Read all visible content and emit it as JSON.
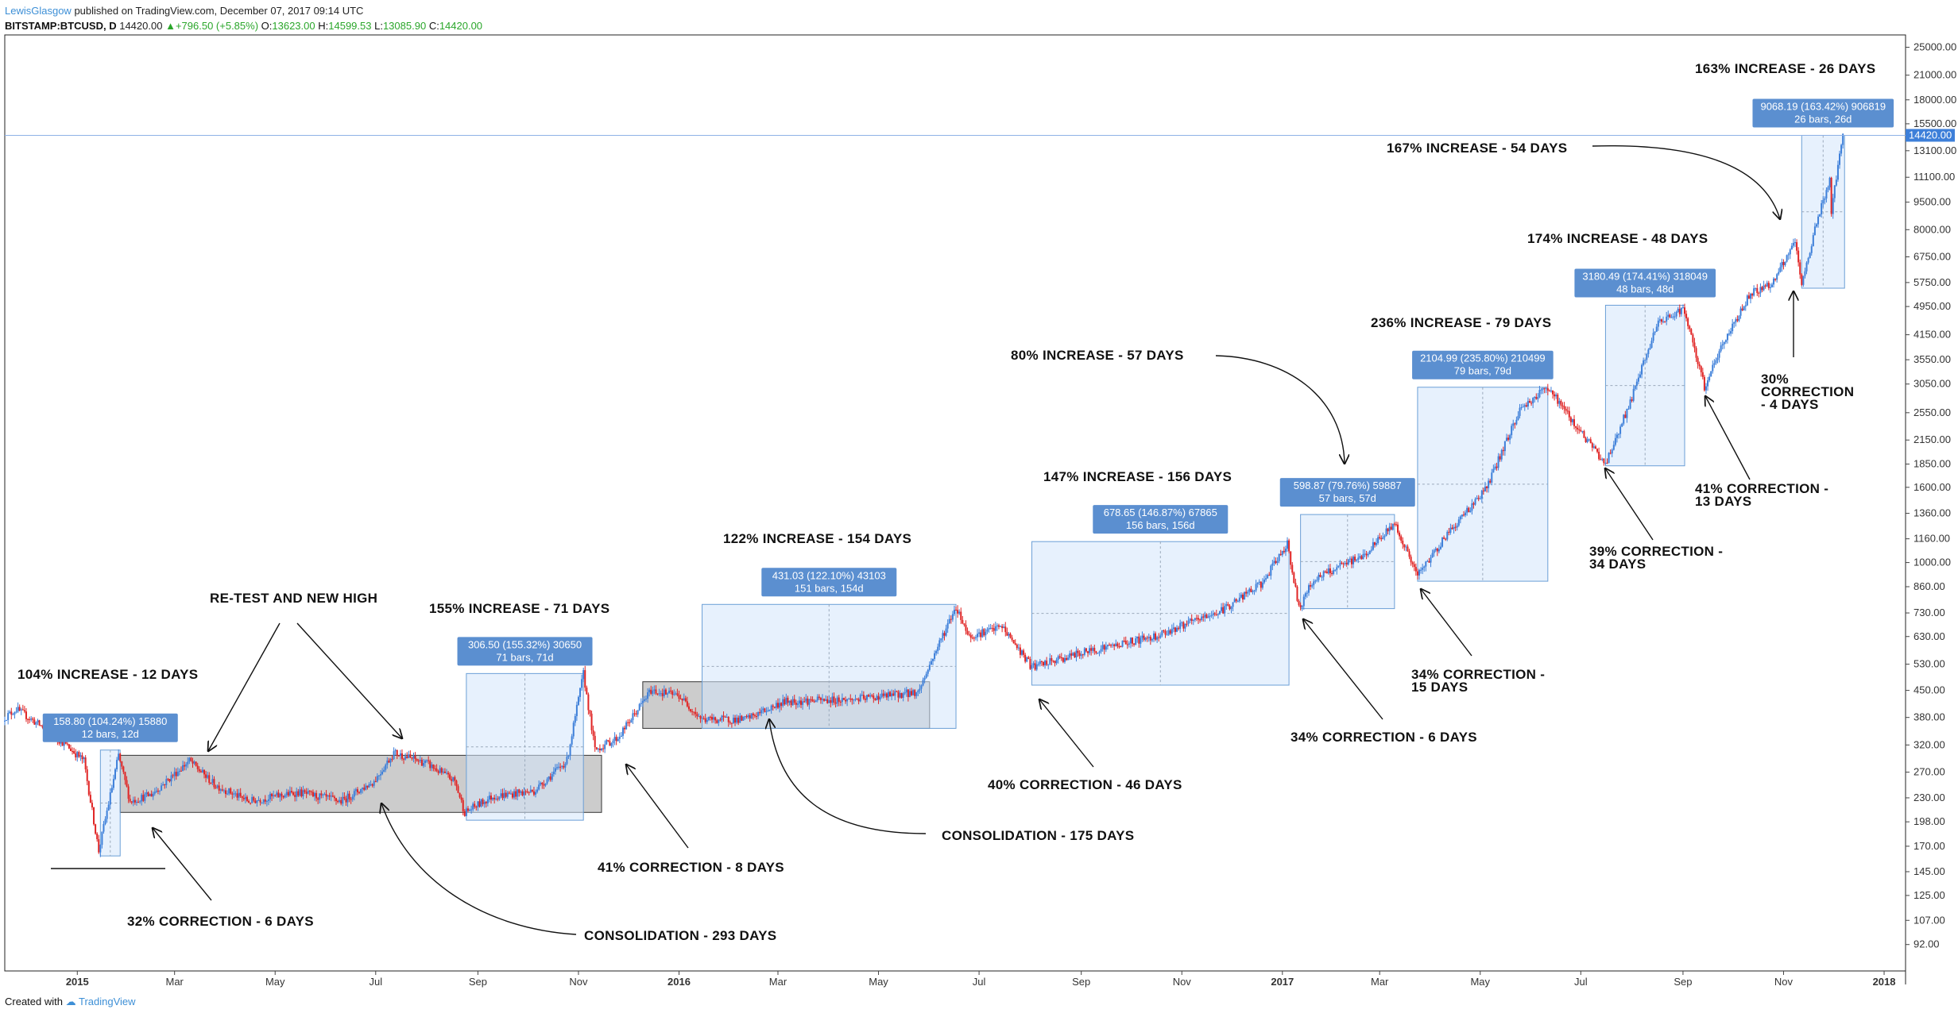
{
  "header": {
    "author": "LewisGlasgow",
    "published": "published on TradingView.com, December 07, 2017 09:14 UTC",
    "symbol": "BITSTAMP:BTCUSD, D",
    "last": "14420.00",
    "change": "+796.50 (+5.85%)",
    "o_label": "O:",
    "o": "13623.00",
    "h_label": "H:",
    "h": "14599.53",
    "l_label": "L:",
    "l": "13085.90",
    "c_label": "C:",
    "c": "14420.00"
  },
  "footer": {
    "created_with": "Created with",
    "brand": "TradingView"
  },
  "colors": {
    "up": "#3d7fd9",
    "down": "#e02424",
    "measure_fill": "#d3e6fb",
    "label_bg": "#5b8fd0"
  },
  "chart_data": {
    "type": "candlestick",
    "title": "",
    "y_scale": "log",
    "ylim": [
      78,
      27000
    ],
    "y_ticks": [
      92,
      107,
      125,
      145,
      170,
      198,
      230,
      270,
      320,
      380,
      450,
      530,
      630,
      730,
      860,
      1000,
      1160,
      1360,
      1600,
      1850,
      2150,
      2550,
      3050,
      3550,
      4150,
      4950,
      5750,
      6750,
      8000,
      9500,
      11100,
      13100,
      15500,
      18000,
      21000,
      25000
    ],
    "y_tick_labels": [
      "92.00",
      "107.00",
      "125.00",
      "145.00",
      "170.00",
      "198.00",
      "230.00",
      "270.00",
      "320.00",
      "380.00",
      "450.00",
      "530.00",
      "630.00",
      "730.00",
      "860.00",
      "1000.00",
      "1160.00",
      "1360.00",
      "1600.00",
      "1850.00",
      "2150.00",
      "2550.00",
      "3050.00",
      "3550.00",
      "4150.00",
      "4950.00",
      "5750.00",
      "6750.00",
      "8000.00",
      "9500.00",
      "11100.00",
      "13100.00",
      "15500.00",
      "18000.00",
      "21000.00",
      "25000.00"
    ],
    "last_price_label": "14420.00",
    "x_range": [
      "2014-11-18",
      "2018-01-14"
    ],
    "x_ticks": [
      {
        "date": "2015-01-01",
        "label": "2015",
        "bold": true
      },
      {
        "date": "2015-03-01",
        "label": "Mar"
      },
      {
        "date": "2015-05-01",
        "label": "May"
      },
      {
        "date": "2015-07-01",
        "label": "Jul"
      },
      {
        "date": "2015-09-01",
        "label": "Sep"
      },
      {
        "date": "2015-11-01",
        "label": "Nov"
      },
      {
        "date": "2016-01-01",
        "label": "2016",
        "bold": true
      },
      {
        "date": "2016-03-01",
        "label": "Mar"
      },
      {
        "date": "2016-05-01",
        "label": "May"
      },
      {
        "date": "2016-07-01",
        "label": "Jul"
      },
      {
        "date": "2016-09-01",
        "label": "Sep"
      },
      {
        "date": "2016-11-01",
        "label": "Nov"
      },
      {
        "date": "2017-01-01",
        "label": "2017",
        "bold": true
      },
      {
        "date": "2017-03-01",
        "label": "Mar"
      },
      {
        "date": "2017-05-01",
        "label": "May"
      },
      {
        "date": "2017-07-01",
        "label": "Jul"
      },
      {
        "date": "2017-09-01",
        "label": "Sep"
      },
      {
        "date": "2017-11-01",
        "label": "Nov"
      },
      {
        "date": "2018-01-01",
        "label": "2018",
        "bold": true
      }
    ],
    "price_path": [
      [
        "2014-11-18",
        380
      ],
      [
        "2014-11-25",
        400
      ],
      [
        "2014-12-10",
        360
      ],
      [
        "2014-12-25",
        320
      ],
      [
        "2015-01-05",
        290
      ],
      [
        "2015-01-14",
        165
      ],
      [
        "2015-01-26",
        300
      ],
      [
        "2015-02-02",
        225
      ],
      [
        "2015-02-15",
        235
      ],
      [
        "2015-03-10",
        290
      ],
      [
        "2015-03-25",
        250
      ],
      [
        "2015-04-15",
        225
      ],
      [
        "2015-05-15",
        238
      ],
      [
        "2015-06-10",
        225
      ],
      [
        "2015-06-30",
        255
      ],
      [
        "2015-07-12",
        305
      ],
      [
        "2015-08-01",
        285
      ],
      [
        "2015-08-18",
        255
      ],
      [
        "2015-08-24",
        210
      ],
      [
        "2015-09-10",
        232
      ],
      [
        "2015-10-05",
        240
      ],
      [
        "2015-10-25",
        290
      ],
      [
        "2015-11-04",
        500
      ],
      [
        "2015-11-11",
        310
      ],
      [
        "2015-11-25",
        335
      ],
      [
        "2015-12-15",
        450
      ],
      [
        "2016-01-01",
        435
      ],
      [
        "2016-01-15",
        375
      ],
      [
        "2016-02-10",
        375
      ],
      [
        "2016-03-05",
        420
      ],
      [
        "2016-04-15",
        425
      ],
      [
        "2016-05-25",
        445
      ],
      [
        "2016-06-05",
        580
      ],
      [
        "2016-06-17",
        760
      ],
      [
        "2016-06-25",
        630
      ],
      [
        "2016-07-15",
        670
      ],
      [
        "2016-08-02",
        520
      ],
      [
        "2016-09-05",
        575
      ],
      [
        "2016-10-15",
        630
      ],
      [
        "2016-11-25",
        740
      ],
      [
        "2016-12-20",
        880
      ],
      [
        "2017-01-04",
        1130
      ],
      [
        "2017-01-11",
        750
      ],
      [
        "2017-01-20",
        900
      ],
      [
        "2017-02-20",
        1050
      ],
      [
        "2017-03-10",
        1280
      ],
      [
        "2017-03-24",
        920
      ],
      [
        "2017-04-10",
        1180
      ],
      [
        "2017-05-05",
        1600
      ],
      [
        "2017-05-25",
        2600
      ],
      [
        "2017-06-11",
        3000
      ],
      [
        "2017-06-25",
        2450
      ],
      [
        "2017-07-16",
        1850
      ],
      [
        "2017-08-01",
        2800
      ],
      [
        "2017-08-16",
        4400
      ],
      [
        "2017-09-01",
        4900
      ],
      [
        "2017-09-14",
        3000
      ],
      [
        "2017-09-25",
        3900
      ],
      [
        "2017-10-12",
        5400
      ],
      [
        "2017-10-25",
        5700
      ],
      [
        "2017-11-08",
        7400
      ],
      [
        "2017-11-12",
        5600
      ],
      [
        "2017-11-20",
        8100
      ],
      [
        "2017-11-29",
        10900
      ],
      [
        "2017-11-30",
        9000
      ],
      [
        "2017-12-07",
        14420
      ]
    ],
    "measurements": [
      {
        "from": "2015-01-15",
        "to": "2015-01-27",
        "low": 160,
        "high": 310,
        "label1": "158.80 (104.24%) 15880",
        "label2": "12 bars, 12d"
      },
      {
        "from": "2015-08-25",
        "to": "2015-11-04",
        "low": 200,
        "high": 500,
        "label1": "306.50 (155.32%) 30650",
        "label2": "71 bars, 71d"
      },
      {
        "from": "2016-01-15",
        "to": "2016-06-17",
        "low": 355,
        "high": 770,
        "label1": "431.03 (122.10%) 43103",
        "label2": "151 bars, 154d"
      },
      {
        "from": "2016-08-02",
        "to": "2017-01-05",
        "low": 465,
        "high": 1140,
        "label1": "678.65 (146.87%) 67865",
        "label2": "156 bars, 156d"
      },
      {
        "from": "2017-01-12",
        "to": "2017-03-10",
        "low": 750,
        "high": 1350,
        "label1": "598.87 (79.76%) 59887",
        "label2": "57 bars, 57d"
      },
      {
        "from": "2017-03-24",
        "to": "2017-06-11",
        "low": 890,
        "high": 2990,
        "label1": "2104.99 (235.80%) 210499",
        "label2": "79 bars, 79d"
      },
      {
        "from": "2017-07-16",
        "to": "2017-09-02",
        "low": 1830,
        "high": 4990,
        "label1": "3180.49 (174.41%) 318049",
        "label2": "48 bars, 48d"
      },
      {
        "from": "2017-11-12",
        "to": "2017-12-08",
        "low": 5550,
        "high": 14420,
        "label1": "9068.19 (163.42%) 906819",
        "label2": "26 bars, 26d"
      }
    ],
    "consolidations": [
      {
        "from": "2015-01-27",
        "to": "2015-11-15",
        "low": 210,
        "high": 300
      },
      {
        "from": "2015-12-10",
        "to": "2016-06-01",
        "low": 355,
        "high": 475
      }
    ],
    "annotations": [
      "104% INCREASE - 12 DAYS",
      "RE-TEST AND NEW HIGH",
      "155% INCREASE - 71 DAYS",
      "122% INCREASE - 154 DAYS",
      "147% INCREASE - 156 DAYS",
      "80% INCREASE - 57 DAYS",
      "236% INCREASE - 79 DAYS",
      "174% INCREASE - 48 DAYS",
      "167% INCREASE - 54 DAYS",
      "163% INCREASE - 26 DAYS",
      "32% CORRECTION - 6 DAYS",
      "CONSOLIDATION - 293 DAYS",
      "41% CORRECTION - 8 DAYS",
      "CONSOLIDATION - 175 DAYS",
      "40% CORRECTION - 46 DAYS",
      "34% CORRECTION - 6 DAYS",
      "34% CORRECTION -",
      "15 DAYS",
      "39% CORRECTION -",
      "34 DAYS",
      "41% CORRECTION -",
      "13 DAYS",
      "30%",
      "CORRECTION",
      "- 4 DAYS"
    ]
  }
}
